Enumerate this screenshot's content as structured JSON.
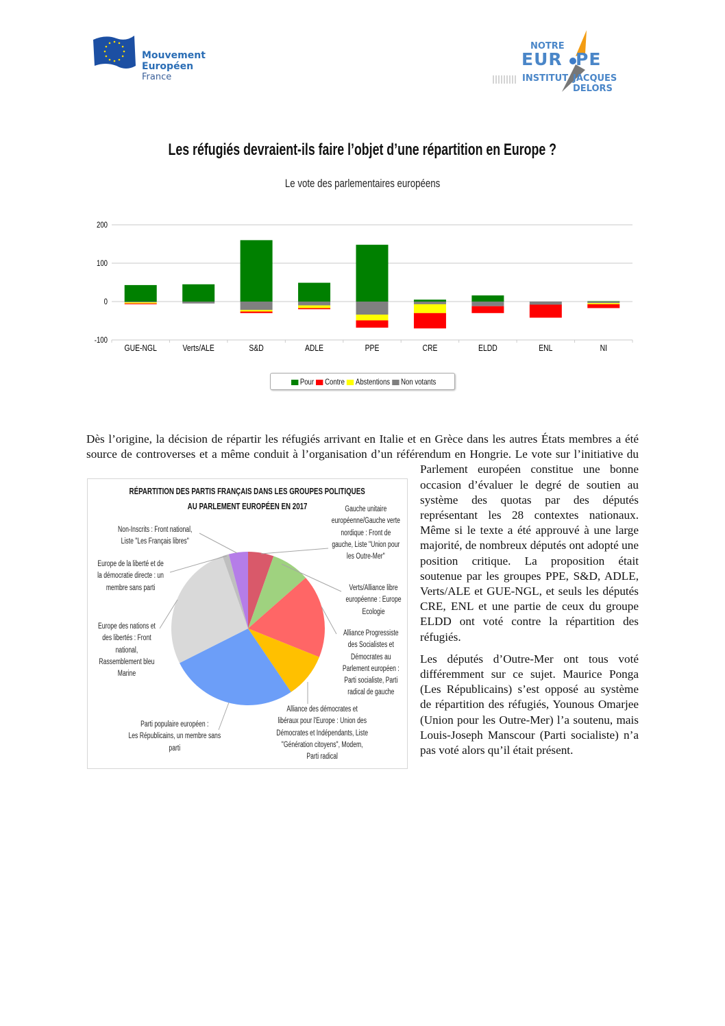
{
  "logos": {
    "left": {
      "lines": [
        "Mouvement",
        "Européen",
        "France"
      ]
    },
    "right": {
      "top": "NOTRE",
      "main": "EUR  PE",
      "bottom_left": "INSTITUT",
      "bottom_right": "JACQUES DELORS"
    }
  },
  "headline": "Les réfugiés devraient-ils faire l’objet d’une répartition en Europe ?",
  "colors": {
    "pour": "#008000",
    "contre": "#ff0000",
    "abstentions": "#ffff00",
    "non_votants": "#808080",
    "brand_blue": "#2a6db5"
  },
  "chart_data": [
    {
      "type": "bar",
      "stacked": true,
      "title": "Le vote des parlementaires européens",
      "categories": [
        "GUE-NGL",
        "Verts/ALE",
        "S&D",
        "ADLE",
        "PPE",
        "CRE",
        "ELDD",
        "ENL",
        "NI"
      ],
      "series": [
        {
          "name": "Pour",
          "color": "#008000",
          "values": [
            43,
            45,
            160,
            49,
            148,
            5,
            16,
            0,
            1
          ]
        },
        {
          "name": "Contre",
          "color": "#ff0000",
          "values": [
            -2,
            0,
            -4,
            -3,
            -19,
            -40,
            -18,
            -34,
            -10
          ]
        },
        {
          "name": "Abstentions",
          "color": "#ffff00",
          "values": [
            -3,
            0,
            -4,
            -7,
            -15,
            -23,
            0,
            0,
            -3
          ]
        },
        {
          "name": "Non votants",
          "color": "#808080",
          "values": [
            -2,
            -5,
            -22,
            -10,
            -34,
            -7,
            -12,
            -8,
            -4
          ]
        }
      ],
      "yticks": [
        "200",
        "100",
        "0",
        "-100"
      ],
      "ylim": [
        -100,
        200
      ],
      "grid": true,
      "legend": "bottom"
    },
    {
      "type": "pie",
      "title_lines": [
        "RÉPARTITION DES PARTIS FRANÇAIS DANS LES GROUPES POLITIQUES",
        "AU PARLEMENT EUROPÉEN EN 2017"
      ],
      "slices": [
        {
          "label": "Gauche unitaire\neuropéenne/Gauche verte\nnordique : Front de\ngauche, Liste \"Union pour\nles Outre-Mer\"",
          "value": 4,
          "color": "#d9596a"
        },
        {
          "label": "Verts/Alliance libre\neuropéenne : Europe\nEcologie",
          "value": 6,
          "color": "#9fd27f"
        },
        {
          "label": "Alliance Progressiste\ndes Socialistes et\nDémocrates au\nParlement européen :\nParti socialiste, Parti\nradical de gauche",
          "value": 13,
          "color": "#ff6666"
        },
        {
          "label": "Alliance des démocrates et\nlibéraux pour l'Europe : Union des\nDémocrates et Indépendants, Liste\n\"Génération citoyens\", Modem,\nParti radical",
          "value": 7,
          "color": "#ffc000"
        },
        {
          "label": "Parti populaire européen :\nLes Républicains, un membre sans\nparti",
          "value": 20,
          "color": "#6c9ef8"
        },
        {
          "label": "Europe des nations et\ndes libertés : Front\nnational,\nRassemblement bleu\nMarine",
          "value": 20,
          "color": "#d9d9d9"
        },
        {
          "label": "Europe de la liberté et de\nla démocratie directe : un\nmembre sans parti",
          "value": 1,
          "color": "#bfbfbf"
        },
        {
          "label": "Non-Inscrits : Front national,\nListe \"Les Français libres\"",
          "value": 3,
          "color": "#b57de8"
        }
      ]
    }
  ],
  "body": {
    "p1": "Dès l’origine, la décision de répartir les réfugiés arrivant en Italie et en Grèce dans les autres États membres a été source de controverses et a même conduit à l’organisation d’un référendum en Hongrie. Le vote sur l’initiative du Parlement européen constitue une bonne occasion d’évaluer le degré de soutien au système des quotas par des députés représentant les 28 contextes nationaux. Même si le texte a été approuvé à une large majorité, de nombreux députés ont adopté une position critique. La proposition était soutenue par les groupes PPE, S&D, ADLE, Verts/ALE et GUE-NGL, et seuls les députés CRE, ENL et une partie de ceux du groupe ELDD ont voté contre la répartition des réfugiés.",
    "p2": "Les députés d’Outre-Mer ont tous voté différemment sur ce sujet. Maurice Ponga (Les Républicains) s’est opposé au système de répartition des réfugiés, Younous Omarjee (Union pour les Outre-Mer) l’a soutenu, mais Louis-Joseph Manscour (Parti socialiste) n’a pas voté alors qu’il était présent."
  }
}
